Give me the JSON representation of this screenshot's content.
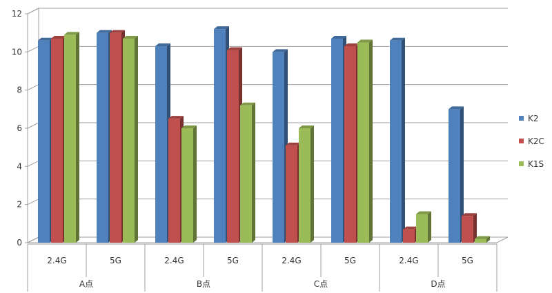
{
  "chart_data": {
    "type": "bar",
    "title": "",
    "xlabel": "",
    "ylabel": "",
    "ylim": [
      0,
      12
    ],
    "yticks": [
      0,
      2,
      4,
      6,
      8,
      10,
      12
    ],
    "grid": true,
    "legend_position": "right",
    "categories": [
      "2.4G",
      "5G",
      "2.4G",
      "5G",
      "2.4G",
      "5G",
      "2.4G",
      "5G"
    ],
    "groups": [
      {
        "label": "A点",
        "span": 2
      },
      {
        "label": "B点",
        "span": 2
      },
      {
        "label": "C点",
        "span": 2
      },
      {
        "label": "D点",
        "span": 2
      }
    ],
    "series": [
      {
        "name": "K2",
        "color": "#4F81BD",
        "values": [
          10.6,
          11.0,
          10.3,
          11.2,
          10.0,
          10.7,
          10.6,
          7.0
        ]
      },
      {
        "name": "K2C",
        "color": "#C0504D",
        "values": [
          10.7,
          11.0,
          6.5,
          10.1,
          5.1,
          10.3,
          0.7,
          1.4
        ]
      },
      {
        "name": "K1S",
        "color": "#9BBB59",
        "values": [
          10.9,
          10.7,
          6.0,
          7.2,
          6.0,
          10.5,
          1.5,
          0.2
        ]
      }
    ]
  }
}
